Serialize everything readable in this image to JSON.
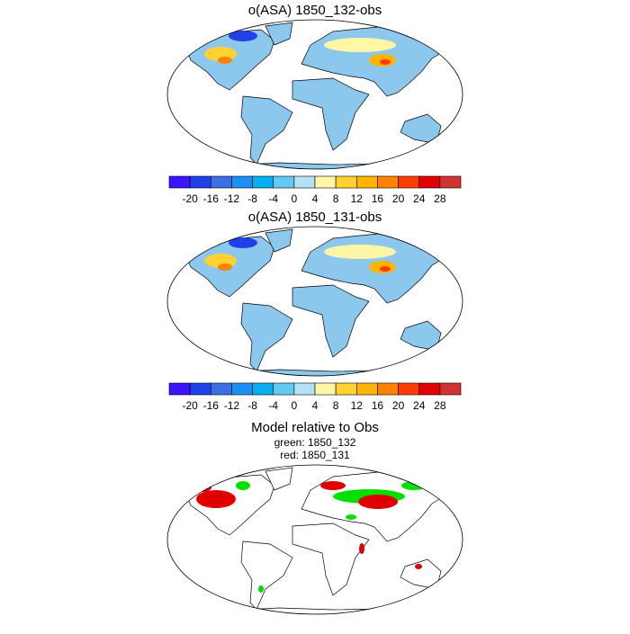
{
  "panels": [
    {
      "title": "o(ASA) 1850_132-obs",
      "colorbar": {
        "colors": [
          "#3c14ff",
          "#2040e8",
          "#3c6ee6",
          "#1e8ff5",
          "#00b0f0",
          "#64c8f0",
          "#b4e2f2",
          "#fff6a6",
          "#ffd232",
          "#ffb400",
          "#ff8200",
          "#ff3c00",
          "#e00000",
          "#d23232"
        ],
        "ticks": [
          -20,
          -16,
          -12,
          -8,
          -4,
          0,
          4,
          8,
          12,
          16,
          20,
          24,
          28
        ]
      }
    },
    {
      "title": "o(ASA) 1850_131-obs",
      "colorbar": {
        "colors": [
          "#3c14ff",
          "#2040e8",
          "#3c6ee6",
          "#1e8ff5",
          "#00b0f0",
          "#64c8f0",
          "#b4e2f2",
          "#fff6a6",
          "#ffd232",
          "#ffb400",
          "#ff8200",
          "#ff3c00",
          "#e00000",
          "#d23232"
        ],
        "ticks": [
          -20,
          -16,
          -12,
          -8,
          -4,
          0,
          4,
          8,
          12,
          16,
          20,
          24,
          28
        ]
      }
    },
    {
      "title": "Model relative to Obs",
      "lines": [
        "green: 1850_132",
        "red: 1850_131"
      ]
    }
  ]
}
